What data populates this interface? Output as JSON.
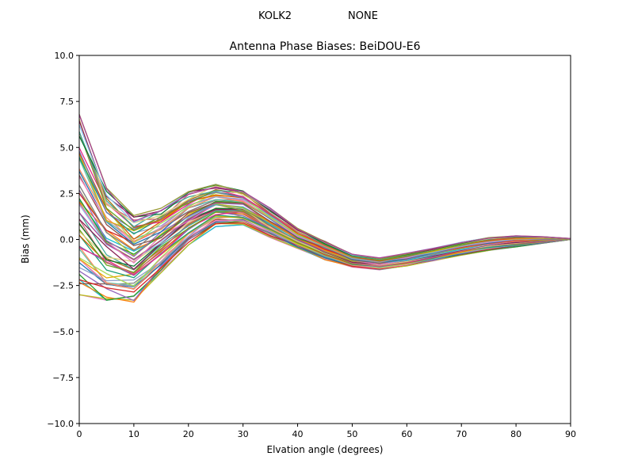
{
  "header": {
    "left": "KOLK2",
    "right": "NONE"
  },
  "chart_data": {
    "type": "line",
    "title": "Antenna Phase Biases: BeiDOU-E6",
    "xlabel": "Elvation angle (degrees)",
    "ylabel": "Bias (mm)",
    "xlim": [
      0,
      90
    ],
    "ylim": [
      -10.0,
      10.0
    ],
    "grid": false,
    "legend": "none",
    "background_color": "#ffffff",
    "axis_color": "#000000",
    "series_count": 60,
    "description": "Ensemble of ~60 overlapping antenna phase bias curves, one per satellite/solution, forming a multicolored band between the lower and upper envelopes; all curves converge to 0 mm at 90 degrees elevation.",
    "x": [
      0,
      5,
      10,
      15,
      20,
      25,
      30,
      35,
      40,
      45,
      50,
      55,
      60,
      65,
      70,
      75,
      80,
      85,
      90
    ],
    "envelope": {
      "lower": [
        -3.0,
        -3.3,
        -3.4,
        -1.8,
        -0.3,
        0.7,
        0.8,
        0.1,
        -0.5,
        -1.1,
        -1.5,
        -1.65,
        -1.45,
        -1.15,
        -0.85,
        -0.6,
        -0.4,
        -0.2,
        0.0
      ],
      "upper": [
        6.8,
        2.8,
        1.3,
        1.7,
        2.6,
        3.0,
        2.7,
        1.7,
        0.6,
        -0.1,
        -0.8,
        -1.0,
        -0.75,
        -0.45,
        -0.15,
        0.1,
        0.2,
        0.15,
        0.05
      ]
    },
    "mean": [
      1.9,
      -0.25,
      -1.05,
      -0.05,
      1.15,
      1.85,
      1.75,
      0.9,
      0.05,
      -0.6,
      -1.15,
      -1.33,
      -1.1,
      -0.8,
      -0.5,
      -0.25,
      -0.1,
      -0.03,
      0.03
    ],
    "xticks": {
      "values": [
        0,
        10,
        20,
        30,
        40,
        50,
        60,
        70,
        80,
        90
      ],
      "labels": [
        "0",
        "10",
        "20",
        "30",
        "40",
        "50",
        "60",
        "70",
        "80",
        "90"
      ]
    },
    "yticks": {
      "values": [
        -10.0,
        -7.5,
        -5.0,
        -2.5,
        0.0,
        2.5,
        5.0,
        7.5,
        10.0
      ],
      "labels": [
        "−10.0",
        "−7.5",
        "−5.0",
        "−2.5",
        "0.0",
        "2.5",
        "5.0",
        "7.5",
        "10.0"
      ]
    },
    "palette": [
      "#e377c2",
      "#17becf",
      "#bcbd22",
      "#ff7f0e",
      "#2ca02c",
      "#9467bd",
      "#8c564b",
      "#d62728",
      "#1f77b4",
      "#7f7f7f",
      "#f781bf",
      "#66c2a5",
      "#fc8d62",
      "#8da0cb",
      "#a6d854",
      "#e6ab02",
      "#1b9e77",
      "#d95f02",
      "#7570b3",
      "#e7298a",
      "#66a61e",
      "#a6761d",
      "#cc6677",
      "#44aa99",
      "#ddcc77",
      "#117733",
      "#882255",
      "#88ccee",
      "#999933",
      "#aa4499"
    ]
  }
}
